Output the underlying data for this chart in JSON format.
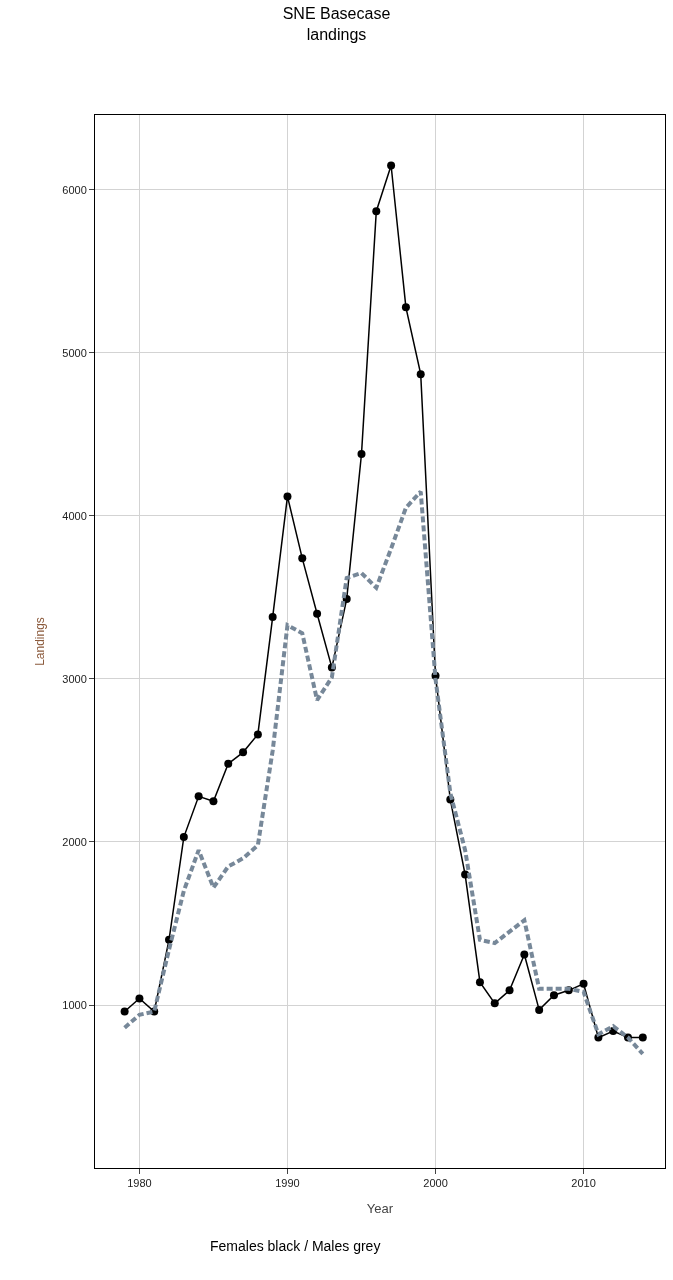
{
  "chart_data": {
    "type": "line",
    "title": "SNE Basecase\nlandings",
    "xlabel": "Year",
    "ylabel": "Landings",
    "annotations": [
      "Females black / Males grey"
    ],
    "x": [
      1979,
      1980,
      1981,
      1982,
      1983,
      1984,
      1985,
      1986,
      1987,
      1988,
      1989,
      1990,
      1991,
      1992,
      1993,
      1994,
      1995,
      1996,
      1997,
      1998,
      1999,
      2000,
      2001,
      2002,
      2003,
      2004,
      2005,
      2006,
      2007,
      2008,
      2009,
      2010,
      2011,
      2012,
      2013,
      2014
    ],
    "series": [
      {
        "color": "#000000",
        "marker": "circle",
        "line_style": "solid",
        "values": [
          960,
          1040,
          960,
          1400,
          2030,
          2280,
          2250,
          2480,
          2550,
          2660,
          3380,
          4120,
          3740,
          3400,
          3070,
          3490,
          4380,
          5870,
          6150,
          5280,
          4870,
          3020,
          2260,
          1800,
          1140,
          1010,
          1090,
          1310,
          970,
          1060,
          1090,
          1130,
          800,
          840,
          800,
          800
        ]
      },
      {
        "color": "#778899",
        "marker": "none",
        "line_style": "dashed",
        "values": [
          860,
          940,
          960,
          1340,
          1700,
          1950,
          1720,
          1850,
          1900,
          1980,
          2560,
          3330,
          3280,
          2870,
          3010,
          3620,
          3650,
          3560,
          3800,
          4050,
          4150,
          3000,
          2300,
          1950,
          1400,
          1380,
          1450,
          1520,
          1100,
          1100,
          1100,
          1080,
          820,
          870,
          800,
          700
        ]
      }
    ],
    "xlim": [
      1977,
      2015.5
    ],
    "xticks": [
      1980,
      1990,
      2000,
      2010
    ],
    "ylim": [
      0,
      6460
    ],
    "yticks": [
      1000,
      2000,
      3000,
      4000,
      5000,
      6000
    ],
    "grid": true
  }
}
